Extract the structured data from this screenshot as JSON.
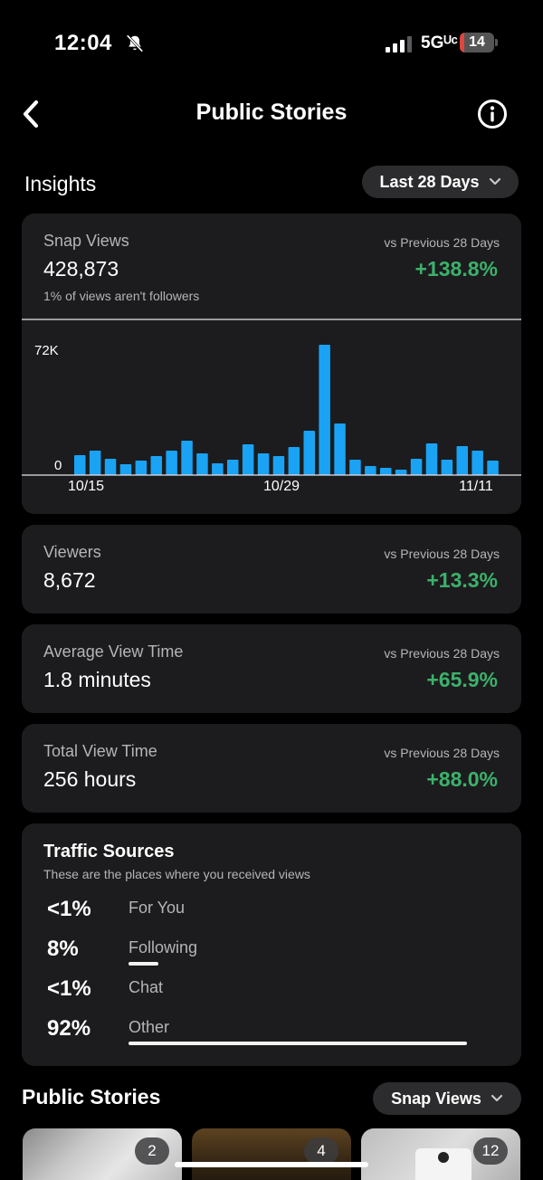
{
  "status_bar": {
    "time": "12:04",
    "network": "5Gᵁᶜ",
    "battery": "14",
    "battery_level_percent": 14,
    "bell_icon": "bell-slash-icon",
    "signal_icon": "signal-bars-icon"
  },
  "nav": {
    "title": "Public Stories",
    "back_icon": "chevron-left-icon",
    "info_icon": "info-circle-icon"
  },
  "insights": {
    "title": "Insights",
    "range_label": "Last 28 Days"
  },
  "snap_views": {
    "label": "Snap Views",
    "value": "428,873",
    "vs": "vs Previous 28 Days",
    "change": "+138.8%",
    "sub": "1% of views aren't followers"
  },
  "chart_data": {
    "type": "bar",
    "title": "Snap Views",
    "ytick_labels": [
      "72K",
      "0"
    ],
    "ylim": [
      0,
      72000
    ],
    "xtick_labels": [
      "10/15",
      "10/29",
      "11/11"
    ],
    "values": [
      11000,
      13500,
      9000,
      6000,
      8000,
      10500,
      13500,
      19000,
      12000,
      6500,
      8500,
      17000,
      12000,
      10500,
      15500,
      24500,
      72000,
      28500,
      8500,
      5000,
      4000,
      3000,
      9000,
      17500,
      8500,
      16000,
      13500,
      8000
    ],
    "bar_color": "#1aa3f4"
  },
  "viewers": {
    "label": "Viewers",
    "value": "8,672",
    "vs": "vs Previous 28 Days",
    "change": "+13.3%"
  },
  "avg_view_time": {
    "label": "Average View Time",
    "value": "1.8 minutes",
    "vs": "vs Previous 28 Days",
    "change": "+65.9%"
  },
  "total_view_time": {
    "label": "Total View Time",
    "value": "256 hours",
    "vs": "vs Previous 28 Days",
    "change": "+88.0%"
  },
  "traffic_sources": {
    "title": "Traffic Sources",
    "subtitle": "These are the places where you received views",
    "items": [
      {
        "pct": "<1%",
        "name": "For You",
        "share": 0
      },
      {
        "pct": "8%",
        "name": "Following",
        "share": 8
      },
      {
        "pct": "<1%",
        "name": "Chat",
        "share": 0
      },
      {
        "pct": "92%",
        "name": "Other",
        "share": 92
      }
    ]
  },
  "public_stories": {
    "title": "Public Stories",
    "sort_label": "Snap Views",
    "thumbs": [
      {
        "count": "2"
      },
      {
        "count": "4"
      },
      {
        "count": "12"
      }
    ]
  },
  "colors": {
    "positive": "#3cb16b",
    "accent": "#1aa3f4",
    "card": "#1c1c1e"
  }
}
